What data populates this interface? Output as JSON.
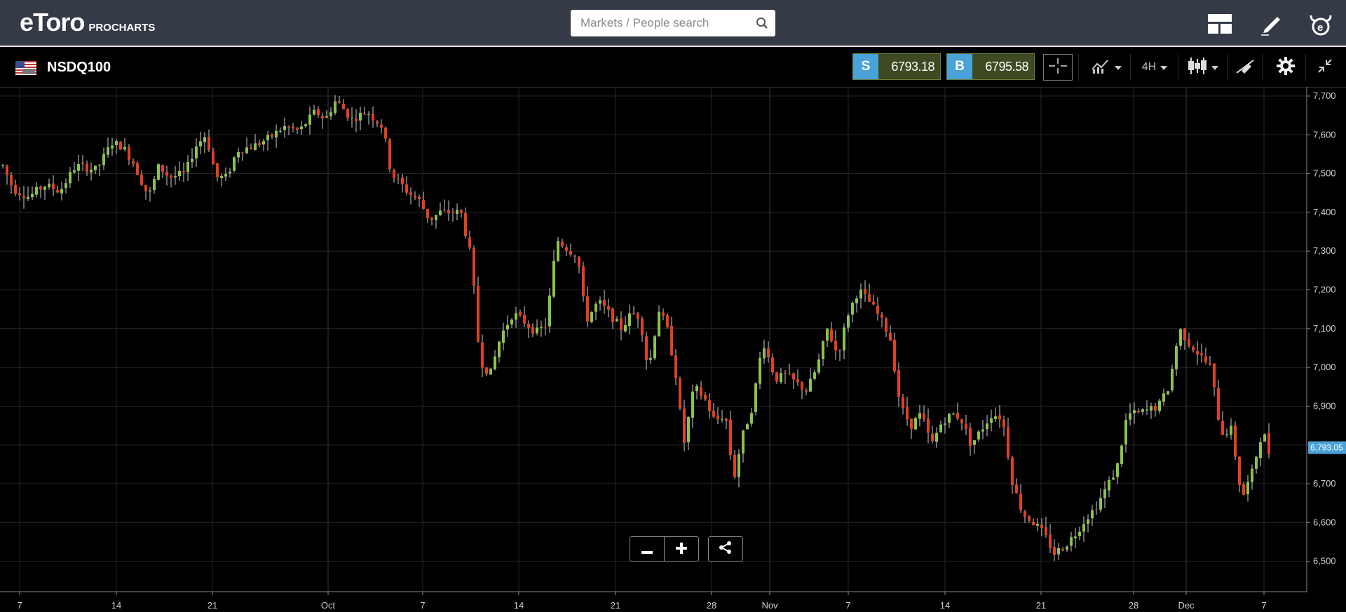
{
  "header": {
    "logo_text": "eToro",
    "logo_sub": "PROCHARTS",
    "search_placeholder": "Markets / People search"
  },
  "instrument": {
    "name": "NSDQ100",
    "sell_label": "S",
    "sell_price": "6793.18",
    "buy_label": "B",
    "buy_price": "6795.58",
    "timeframe": "4H"
  },
  "colors": {
    "up": "#8bc34a",
    "down": "#e0401e",
    "price_tag": "#4aa3d8",
    "accent_green": "#3e4a22"
  },
  "chart_data": {
    "type": "candlestick",
    "ylim": [
      6450,
      7700
    ],
    "y_ticks": [
      "7,700",
      "7,600",
      "7,500",
      "7,400",
      "7,300",
      "7,200",
      "7,100",
      "7,000",
      "6,900",
      "6,800",
      "6,700",
      "6,600",
      "6,500"
    ],
    "x_ticks": [
      "7",
      "14",
      "21",
      "Oct",
      "7",
      "14",
      "21",
      "28",
      "Nov",
      "7",
      "14",
      "21",
      "28",
      "Dec",
      "7"
    ],
    "current_price_label": "6,793.05",
    "current_price": 6793.05,
    "grid": true,
    "close_path": [
      [
        0,
        7520
      ],
      [
        10,
        7460
      ],
      [
        25,
        7440
      ],
      [
        40,
        7470
      ],
      [
        55,
        7455
      ],
      [
        70,
        7520
      ],
      [
        90,
        7510
      ],
      [
        105,
        7580
      ],
      [
        115,
        7570
      ],
      [
        125,
        7530
      ],
      [
        140,
        7440
      ],
      [
        150,
        7520
      ],
      [
        160,
        7490
      ],
      [
        175,
        7500
      ],
      [
        185,
        7570
      ],
      [
        195,
        7600
      ],
      [
        205,
        7490
      ],
      [
        215,
        7490
      ],
      [
        225,
        7560
      ],
      [
        240,
        7570
      ],
      [
        255,
        7590
      ],
      [
        270,
        7620
      ],
      [
        285,
        7610
      ],
      [
        300,
        7660
      ],
      [
        310,
        7640
      ],
      [
        320,
        7690
      ],
      [
        335,
        7640
      ],
      [
        350,
        7660
      ],
      [
        365,
        7620
      ],
      [
        373,
        7500
      ],
      [
        390,
        7450
      ],
      [
        400,
        7430
      ],
      [
        410,
        7380
      ],
      [
        420,
        7400
      ],
      [
        430,
        7400
      ],
      [
        440,
        7400
      ],
      [
        450,
        7280
      ],
      [
        458,
        7020
      ],
      [
        468,
        6980
      ],
      [
        478,
        7080
      ],
      [
        490,
        7140
      ],
      [
        500,
        7120
      ],
      [
        512,
        7090
      ],
      [
        522,
        7110
      ],
      [
        532,
        7330
      ],
      [
        545,
        7300
      ],
      [
        552,
        7290
      ],
      [
        560,
        7120
      ],
      [
        572,
        7170
      ],
      [
        582,
        7140
      ],
      [
        594,
        7100
      ],
      [
        604,
        7140
      ],
      [
        612,
        7130
      ],
      [
        620,
        6990
      ],
      [
        630,
        7150
      ],
      [
        638,
        7100
      ],
      [
        646,
        6990
      ],
      [
        654,
        6800
      ],
      [
        664,
        6950
      ],
      [
        674,
        6920
      ],
      [
        684,
        6860
      ],
      [
        694,
        6880
      ],
      [
        702,
        6710
      ],
      [
        710,
        6820
      ],
      [
        720,
        6900
      ],
      [
        730,
        7070
      ],
      [
        742,
        6970
      ],
      [
        752,
        6980
      ],
      [
        762,
        6960
      ],
      [
        772,
        6940
      ],
      [
        782,
        7000
      ],
      [
        792,
        7100
      ],
      [
        802,
        7030
      ],
      [
        812,
        7140
      ],
      [
        822,
        7200
      ],
      [
        832,
        7170
      ],
      [
        842,
        7130
      ],
      [
        852,
        7080
      ],
      [
        862,
        6900
      ],
      [
        872,
        6850
      ],
      [
        882,
        6880
      ],
      [
        892,
        6800
      ],
      [
        902,
        6860
      ],
      [
        912,
        6880
      ],
      [
        920,
        6870
      ],
      [
        930,
        6800
      ],
      [
        940,
        6840
      ],
      [
        950,
        6880
      ],
      [
        960,
        6870
      ],
      [
        970,
        6700
      ],
      [
        980,
        6620
      ],
      [
        990,
        6600
      ],
      [
        1000,
        6570
      ],
      [
        1010,
        6520
      ],
      [
        1020,
        6540
      ],
      [
        1030,
        6570
      ],
      [
        1040,
        6610
      ],
      [
        1050,
        6640
      ],
      [
        1060,
        6690
      ],
      [
        1070,
        6740
      ],
      [
        1080,
        6880
      ],
      [
        1090,
        6880
      ],
      [
        1100,
        6890
      ],
      [
        1110,
        6900
      ],
      [
        1120,
        6950
      ],
      [
        1130,
        7100
      ],
      [
        1140,
        7060
      ],
      [
        1150,
        7030
      ],
      [
        1160,
        7000
      ],
      [
        1170,
        6830
      ],
      [
        1180,
        6840
      ],
      [
        1190,
        6660
      ],
      [
        1200,
        6730
      ],
      [
        1210,
        6840
      ],
      [
        1216,
        6780
      ]
    ]
  }
}
